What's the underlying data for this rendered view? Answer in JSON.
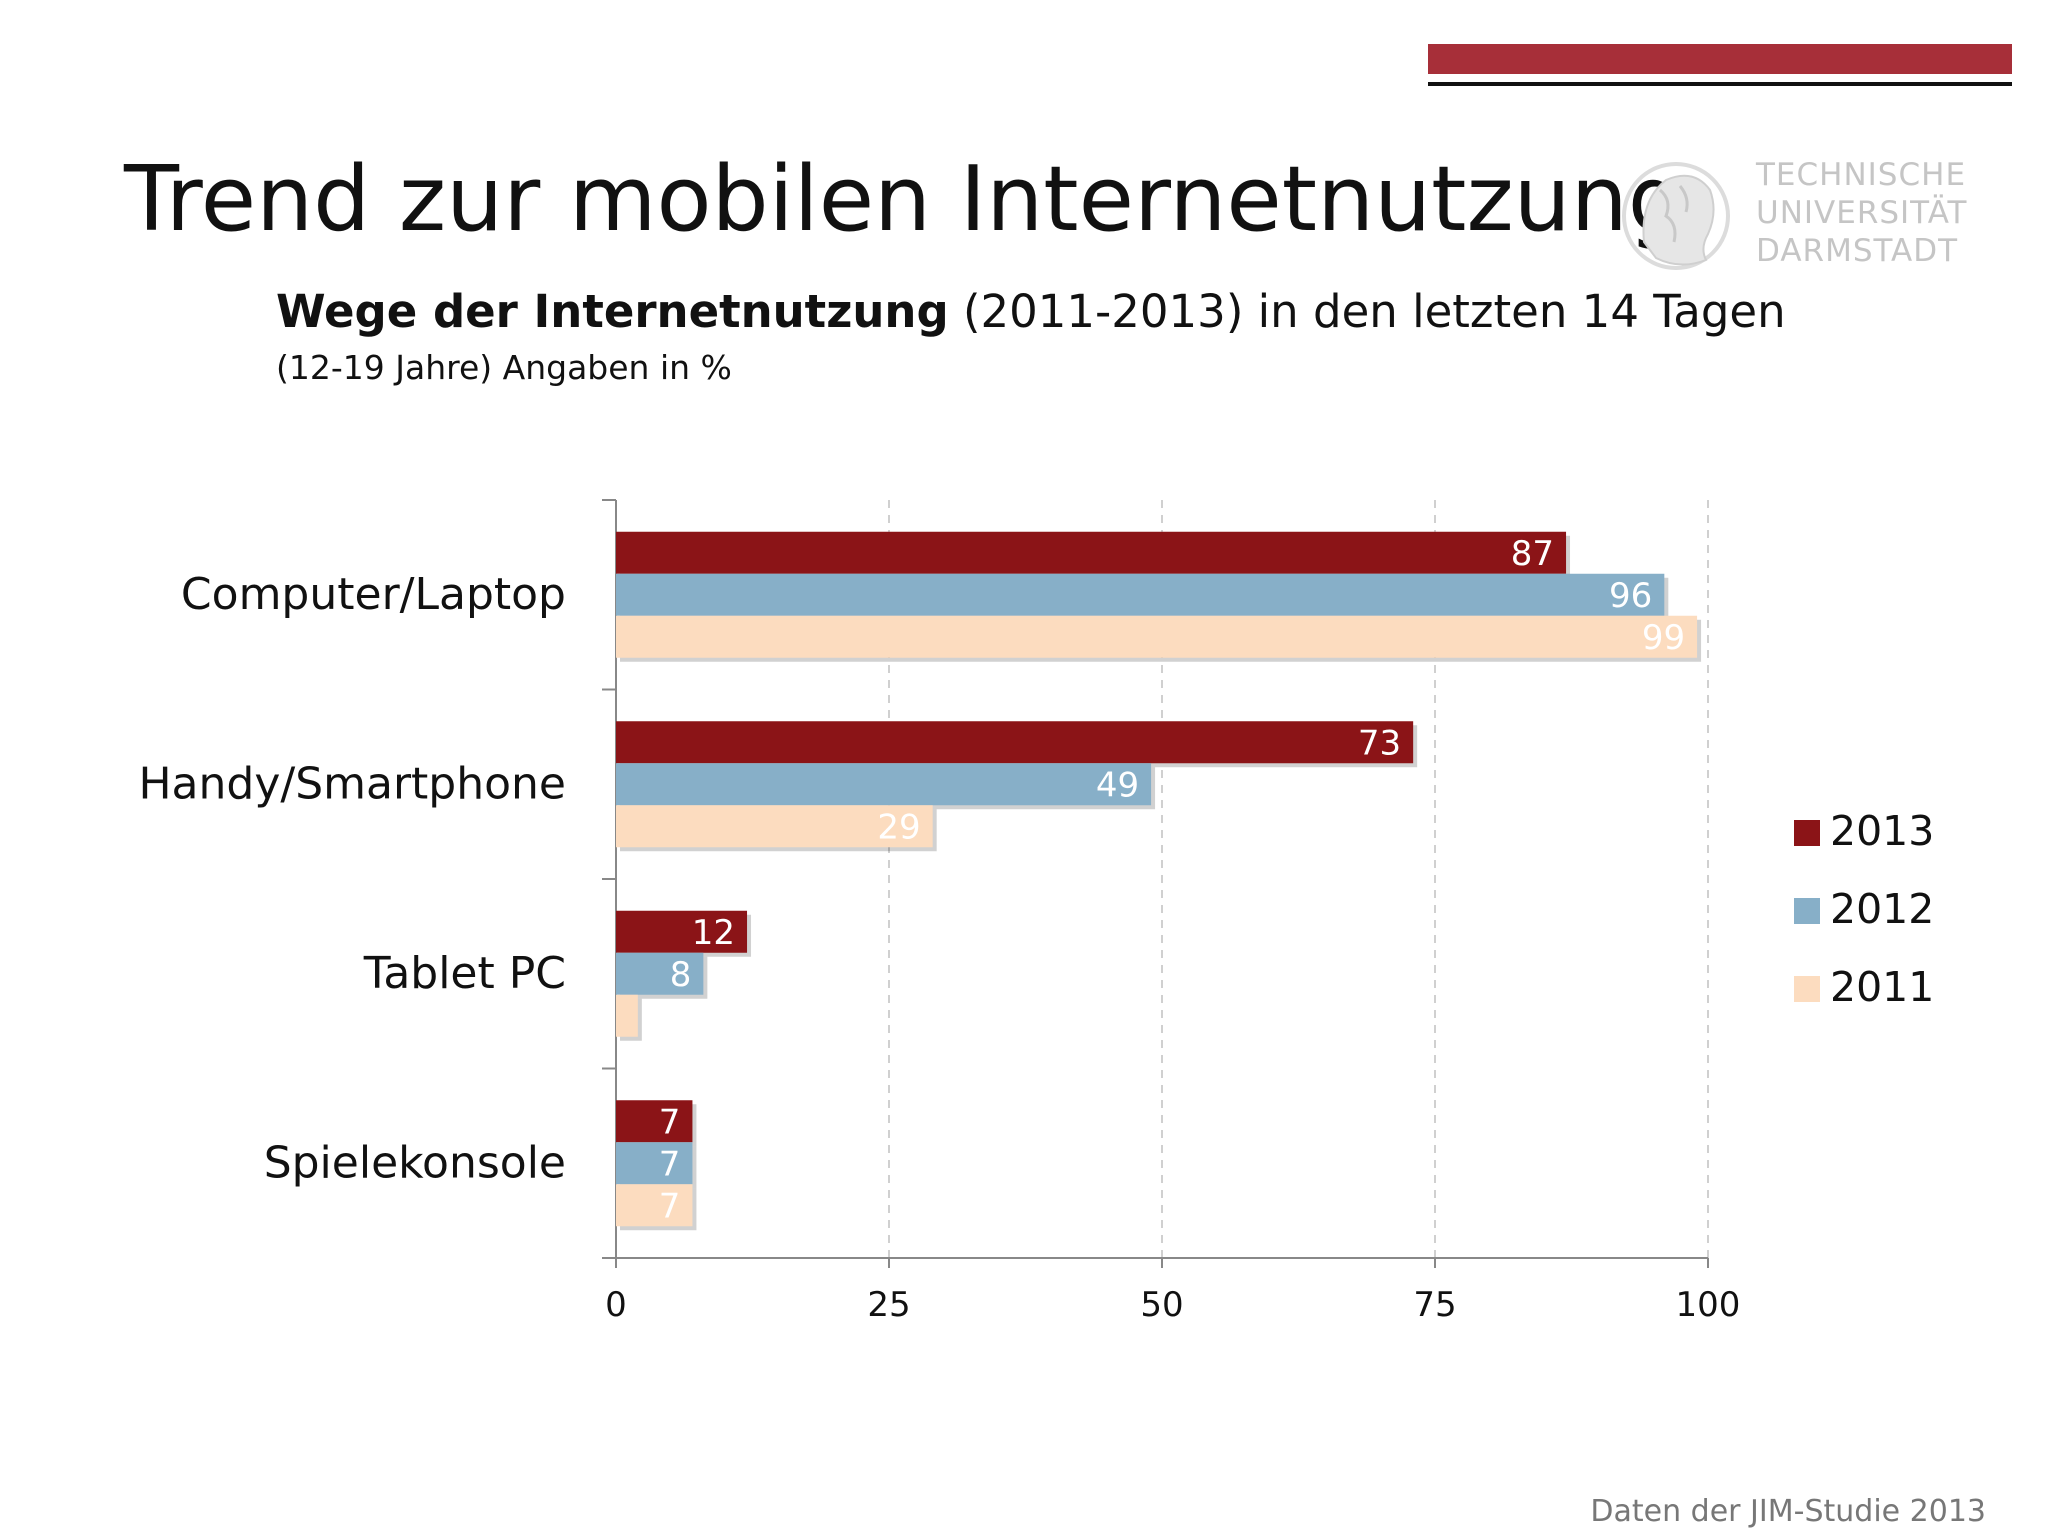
{
  "slide": {
    "title": "Trend zur mobilen Internetnutzung",
    "subtitle_bold": "Wege der Internetnutzung",
    "subtitle_rest": " (2011-2013) in den letzten 14 Tagen",
    "subtitle_note": "(12-19 Jahre) Angaben in %",
    "source": "Daten der JIM-Studie 2013",
    "logo_lines": [
      "TECHNISCHE",
      "UNIVERSITÄT",
      "DARMSTADT"
    ],
    "accent_color": "#a72f39"
  },
  "chart_data": {
    "type": "bar",
    "orientation": "horizontal",
    "categories": [
      "Computer/Laptop",
      "Handy/Smartphone",
      "Tablet PC",
      "Spielekonsole"
    ],
    "series": [
      {
        "name": "2013",
        "color": "#8b1417",
        "values": [
          87,
          73,
          12,
          7
        ]
      },
      {
        "name": "2012",
        "color": "#87afc8",
        "values": [
          96,
          49,
          8,
          7
        ]
      },
      {
        "name": "2011",
        "color": "#fcdcbf",
        "values": [
          99,
          29,
          2,
          7
        ]
      }
    ],
    "data_labels": [
      [
        "87",
        "73",
        "12",
        "7"
      ],
      [
        "96",
        "49",
        "8",
        "7"
      ],
      [
        "99",
        "29",
        "",
        "7"
      ]
    ],
    "xlim": [
      0,
      100
    ],
    "xticks": [
      "0",
      "25",
      "50",
      "75",
      "100"
    ],
    "grid": "vertical dashed",
    "legend_position": "right"
  }
}
